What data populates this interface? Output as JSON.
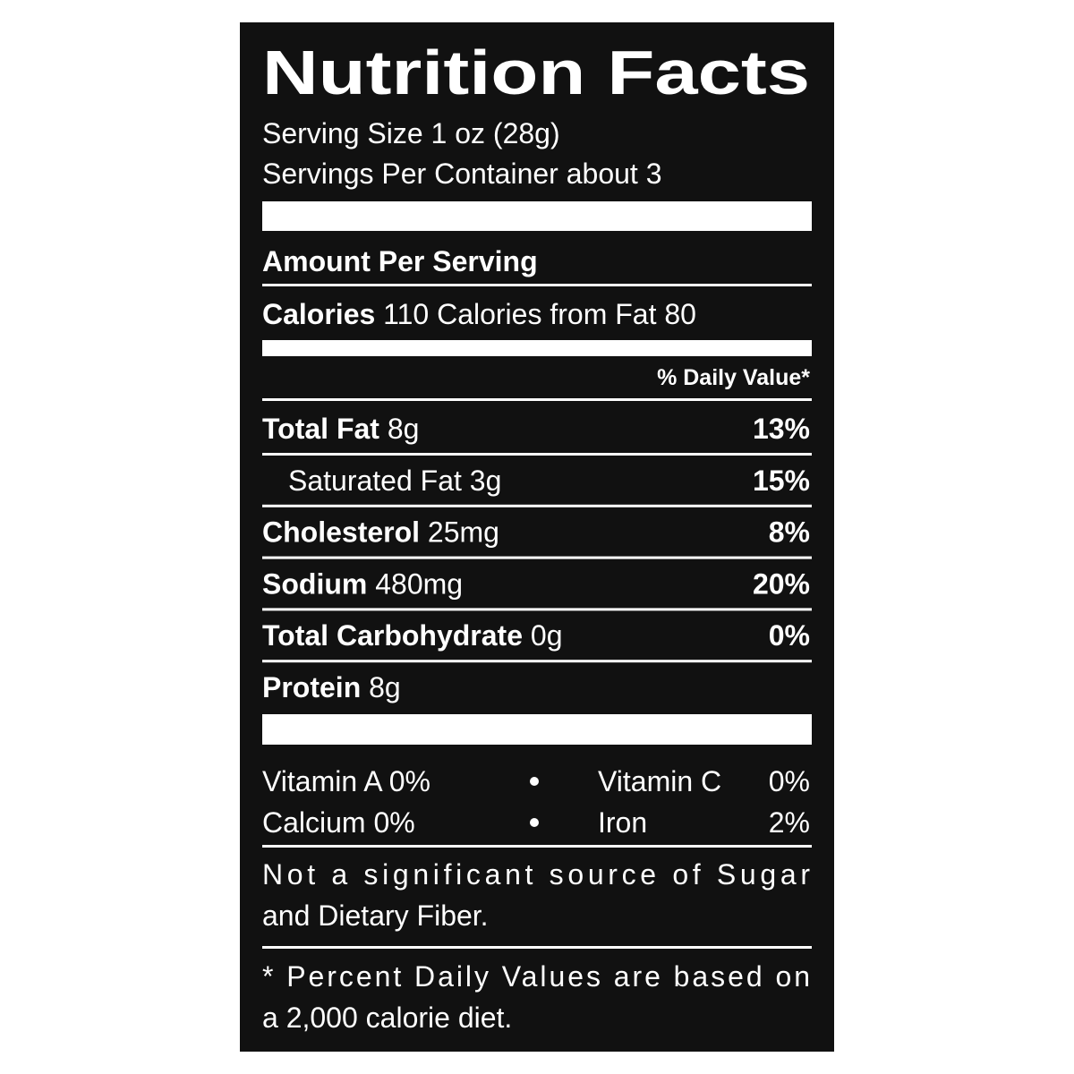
{
  "header": {
    "title": "Nutrition Facts",
    "serving_size": "Serving Size 1 oz (28g)",
    "servings_per_container": "Servings Per Container about 3"
  },
  "amount_per_serving": "Amount Per Serving",
  "calories": {
    "label": "Calories",
    "amount": "110 Calories from Fat 80"
  },
  "daily_value_header": "% Daily Value*",
  "nutrients": [
    {
      "label": "Total Fat",
      "amount": "8g",
      "daily_value": "13%"
    },
    {
      "label": "Saturated Fat",
      "amount": "3g",
      "daily_value": "15%"
    },
    {
      "label": "Cholesterol",
      "amount": "25mg",
      "daily_value": "8%"
    },
    {
      "label": "Sodium",
      "amount": "480mg",
      "daily_value": "20%"
    },
    {
      "label": "Total Carbohydrate",
      "amount": "0g",
      "daily_value": "0%"
    },
    {
      "label": "Protein",
      "amount": "8g"
    }
  ],
  "vitamins": [
    {
      "name": "Vitamin A",
      "value": "0%"
    },
    {
      "name": "Vitamin C",
      "value": "0%"
    },
    {
      "name": "Calcium",
      "value": "0%"
    },
    {
      "name": "Iron",
      "value": "2%"
    }
  ],
  "note": [
    "Not a significant source of Sugar",
    "and Dietary Fiber."
  ],
  "footnote": [
    "* Percent Daily Values are based on",
    "a 2,000 calorie diet."
  ]
}
